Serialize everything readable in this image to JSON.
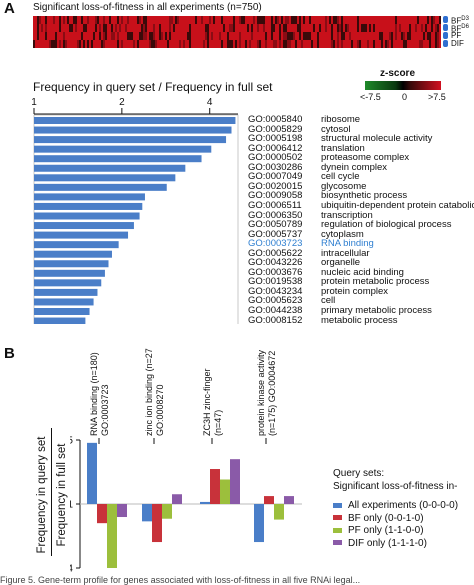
{
  "panel_a": {
    "letter": "A",
    "heatmap_title": "Significant loss-of-fitness in all experiments (n=750)",
    "heatmap_rows": [
      {
        "label": "BF",
        "sup": "D3"
      },
      {
        "label": "BF",
        "sup": "D6"
      },
      {
        "label": "PF",
        "sup": ""
      },
      {
        "label": "DIF",
        "sup": ""
      }
    ],
    "bar_title": "Frequency in query set / Frequency in full set",
    "zscore_title": "z-score",
    "zscore_labels": [
      "<-7.5",
      "0",
      ">7.5"
    ],
    "colors": {
      "bar": "#4a7ec8",
      "heat_red": "#c8101a",
      "heat_dark": "#3a0a0a",
      "link": "#2f7fd0"
    }
  },
  "panel_b": {
    "letter": "B",
    "legend_title_1": "Query sets:",
    "legend_title_2": "Significant loss-of-fitness in-",
    "ylabel_top": "Frequency in query set",
    "ylabel_bottom": "Frequency in full set",
    "caption": "Figure 5. Gene-term profile for genes associated with loss-of-fitness in all five RNAi legal..."
  },
  "chart_data": [
    {
      "type": "bar",
      "orientation": "horizontal",
      "title": "Frequency in query set / Frequency in full set",
      "xscale": "log2",
      "xticks": [
        "1",
        "2",
        "4"
      ],
      "xlim": [
        1,
        5.0
      ],
      "categories": [
        {
          "go": "GO:0005840",
          "term": "ribosome"
        },
        {
          "go": "GO:0005829",
          "term": "cytosol"
        },
        {
          "go": "GO:0005198",
          "term": "structural molecule activity"
        },
        {
          "go": "GO:0006412",
          "term": "translation"
        },
        {
          "go": "GO:0000502",
          "term": "proteasome complex"
        },
        {
          "go": "GO:0030286",
          "term": "dynein complex"
        },
        {
          "go": "GO:0007049",
          "term": "cell cycle"
        },
        {
          "go": "GO:0020015",
          "term": "glycosome"
        },
        {
          "go": "GO:0009058",
          "term": "biosynthetic process"
        },
        {
          "go": "GO:0006511",
          "term": "ubiquitin-dependent protein catabolic..."
        },
        {
          "go": "GO:0006350",
          "term": "transcription"
        },
        {
          "go": "GO:0050789",
          "term": "regulation of biological process"
        },
        {
          "go": "GO:0005737",
          "term": "cytoplasm"
        },
        {
          "go": "GO:0003723",
          "term": "RNA binding",
          "highlight": true
        },
        {
          "go": "GO:0005622",
          "term": "intracellular"
        },
        {
          "go": "GO:0043226",
          "term": "organelle"
        },
        {
          "go": "GO:0003676",
          "term": "nucleic acid binding"
        },
        {
          "go": "GO:0019538",
          "term": "protein metabolic process"
        },
        {
          "go": "GO:0043234",
          "term": "protein complex"
        },
        {
          "go": "GO:0005623",
          "term": "cell"
        },
        {
          "go": "GO:0044238",
          "term": "primary metabolic process"
        },
        {
          "go": "GO:0008152",
          "term": "metabolic process"
        }
      ],
      "values": [
        4.9,
        4.75,
        4.55,
        4.05,
        3.75,
        3.3,
        3.05,
        2.85,
        2.4,
        2.35,
        2.3,
        2.2,
        2.1,
        1.95,
        1.85,
        1.8,
        1.75,
        1.7,
        1.65,
        1.6,
        1.55,
        1.5
      ]
    },
    {
      "type": "bar",
      "orientation": "vertical",
      "yscale": "log",
      "yticks": [
        "2.5",
        "1",
        "0.4"
      ],
      "ylim": [
        0.4,
        2.5
      ],
      "ylabel": "Frequency in query set / Frequency in full set",
      "categories": [
        "RNA binding (n=180) GO:0003723",
        "zinc ion binding (n=272) GO:0008270",
        "ZC3H zinc-finger (n=47)",
        "protein kinase activity (n=175) GO:0004672"
      ],
      "category_lines": [
        [
          "RNA binding (n=180)",
          "GO:0003723"
        ],
        [
          "zinc ion binding (n=272)",
          "GO:0008270"
        ],
        [
          "ZC3H zinc-finger",
          "(n=47)"
        ],
        [
          "protein kinase activity",
          "(n=175) GO:0004672"
        ]
      ],
      "series": [
        {
          "name": "All experiments (0-0-0-0)",
          "color": "#4a7ec8",
          "values": [
            2.4,
            0.78,
            1.03,
            0.58
          ]
        },
        {
          "name": "BF only (0-0-1-0)",
          "color": "#c8323a",
          "values": [
            0.76,
            0.58,
            1.65,
            1.12
          ]
        },
        {
          "name": "PF only (1-1-0-0)",
          "color": "#9cbf3c",
          "values": [
            0.4,
            0.81,
            1.42,
            0.8
          ]
        },
        {
          "name": "DIF only (1-1-1-0)",
          "color": "#8a5aa8",
          "values": [
            0.83,
            1.15,
            1.9,
            1.12
          ]
        }
      ]
    }
  ]
}
